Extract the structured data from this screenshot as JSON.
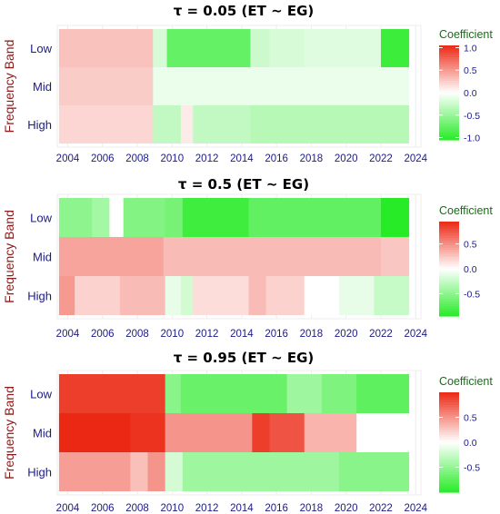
{
  "chart_data": [
    {
      "type": "heatmap",
      "title": "τ = 0.05  (ET ~ EG)",
      "ylabel": "Frequency Band",
      "xlabel": "",
      "bands": [
        "Low",
        "Mid",
        "High"
      ],
      "x_ticks": [
        "2004",
        "2006",
        "2008",
        "2010",
        "2012",
        "2014",
        "2016",
        "2018",
        "2020",
        "2022",
        "2024"
      ],
      "xlim": [
        2003.4,
        2024.3
      ],
      "segments": [
        [
          [
            2003.5,
            2008.9,
            0.3
          ],
          [
            2008.9,
            2009.7,
            -0.2
          ],
          [
            2009.7,
            2014.5,
            -0.75
          ],
          [
            2014.5,
            2015.6,
            -0.25
          ],
          [
            2015.6,
            2017.6,
            -0.2
          ],
          [
            2017.6,
            2022.0,
            -0.15
          ],
          [
            2022.0,
            2023.6,
            -0.95
          ]
        ],
        [
          [
            2003.5,
            2008.9,
            0.25
          ],
          [
            2008.9,
            2023.6,
            -0.1
          ]
        ],
        [
          [
            2003.5,
            2008.9,
            0.2
          ],
          [
            2008.9,
            2010.5,
            -0.3
          ],
          [
            2010.5,
            2011.2,
            0.1
          ],
          [
            2011.2,
            2014.5,
            -0.3
          ],
          [
            2014.5,
            2023.6,
            -0.35
          ]
        ]
      ],
      "legend": {
        "title": "Coefficient",
        "ticks": [
          1.0,
          0.5,
          0.0,
          -0.5,
          -1.0
        ],
        "tick_labels": [
          "1.0",
          "0.5",
          "0.0",
          "-0.5",
          "-1.0"
        ],
        "range": [
          -1.05,
          1.05
        ]
      }
    },
    {
      "type": "heatmap",
      "title": "τ = 0.5  (ET ~ EG)",
      "ylabel": "Frequency Band",
      "xlabel": "",
      "bands": [
        "Low",
        "Mid",
        "High"
      ],
      "x_ticks": [
        "2004",
        "2006",
        "2008",
        "2010",
        "2012",
        "2014",
        "2016",
        "2018",
        "2020",
        "2022",
        "2024"
      ],
      "xlim": [
        2003.4,
        2024.3
      ],
      "segments": [
        [
          [
            2003.5,
            2005.4,
            -0.5
          ],
          [
            2005.4,
            2006.4,
            -0.4
          ],
          [
            2006.4,
            2007.2,
            0.0
          ],
          [
            2007.2,
            2009.6,
            -0.55
          ],
          [
            2009.6,
            2010.6,
            -0.6
          ],
          [
            2010.6,
            2014.4,
            -0.85
          ],
          [
            2014.4,
            2022.0,
            -0.7
          ],
          [
            2022.0,
            2023.6,
            -0.95
          ]
        ],
        [
          [
            2003.5,
            2009.5,
            0.4
          ],
          [
            2009.5,
            2022.0,
            0.3
          ],
          [
            2022.0,
            2023.6,
            0.25
          ]
        ],
        [
          [
            2003.5,
            2004.4,
            0.45
          ],
          [
            2004.4,
            2007.0,
            0.2
          ],
          [
            2007.0,
            2009.6,
            0.3
          ],
          [
            2009.6,
            2010.5,
            -0.1
          ],
          [
            2010.5,
            2011.2,
            -0.2
          ],
          [
            2011.2,
            2014.4,
            0.15
          ],
          [
            2014.4,
            2015.4,
            0.3
          ],
          [
            2015.4,
            2017.6,
            0.2
          ],
          [
            2017.6,
            2019.6,
            0.0
          ],
          [
            2019.6,
            2021.6,
            -0.1
          ],
          [
            2021.6,
            2023.6,
            -0.25
          ]
        ]
      ],
      "legend": {
        "title": "Coefficient",
        "ticks": [
          0.5,
          0.0,
          -0.5
        ],
        "tick_labels": [
          "0.5",
          "0.0",
          "-0.5"
        ],
        "range": [
          -0.95,
          0.95
        ]
      }
    },
    {
      "type": "heatmap",
      "title": "τ = 0.95  (ET ~ EG)",
      "ylabel": "Frequency Band",
      "xlabel": "",
      "bands": [
        "Low",
        "Mid",
        "High"
      ],
      "x_ticks": [
        "2004",
        "2006",
        "2008",
        "2010",
        "2012",
        "2014",
        "2016",
        "2018",
        "2020",
        "2022",
        "2024"
      ],
      "xlim": [
        2003.4,
        2024.3
      ],
      "segments": [
        [
          [
            2003.5,
            2009.6,
            0.9
          ],
          [
            2009.6,
            2010.5,
            -0.55
          ],
          [
            2010.5,
            2016.6,
            -0.7
          ],
          [
            2016.6,
            2018.6,
            -0.45
          ],
          [
            2018.6,
            2020.6,
            -0.6
          ],
          [
            2020.6,
            2023.6,
            -0.75
          ]
        ],
        [
          [
            2003.5,
            2007.6,
            1.0
          ],
          [
            2007.6,
            2009.6,
            0.95
          ],
          [
            2009.6,
            2014.6,
            0.5
          ],
          [
            2014.6,
            2015.6,
            0.9
          ],
          [
            2015.6,
            2017.6,
            0.8
          ],
          [
            2017.6,
            2020.6,
            0.35
          ],
          [
            2020.6,
            2023.6,
            0.0
          ]
        ],
        [
          [
            2003.5,
            2007.6,
            0.45
          ],
          [
            2007.6,
            2008.6,
            0.3
          ],
          [
            2008.6,
            2009.6,
            0.5
          ],
          [
            2009.6,
            2010.6,
            -0.2
          ],
          [
            2010.6,
            2019.6,
            -0.45
          ],
          [
            2019.6,
            2023.6,
            -0.55
          ]
        ]
      ],
      "legend": {
        "title": "Coefficient",
        "ticks": [
          0.5,
          0.0,
          -0.5
        ],
        "tick_labels": [
          "0.5",
          "0.0",
          "-0.5"
        ],
        "range": [
          -1.0,
          1.0
        ]
      }
    }
  ]
}
